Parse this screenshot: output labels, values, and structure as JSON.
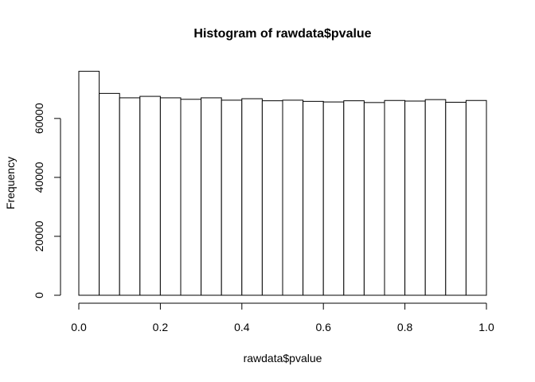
{
  "chart_data": {
    "type": "bar",
    "title": "Histogram of rawdata$pvalue",
    "xlabel": "rawdata$pvalue",
    "ylabel": "Frequency",
    "bin_edges": [
      0.0,
      0.05,
      0.1,
      0.15,
      0.2,
      0.25,
      0.3,
      0.35,
      0.4,
      0.45,
      0.5,
      0.55,
      0.6,
      0.65,
      0.7,
      0.75,
      0.8,
      0.85,
      0.9,
      0.95,
      1.0
    ],
    "values": [
      76000,
      68500,
      67000,
      67500,
      67000,
      66500,
      67000,
      66200,
      66700,
      66000,
      66200,
      65800,
      65600,
      66000,
      65400,
      66100,
      65900,
      66400,
      65500,
      66100
    ],
    "xlim": [
      0.0,
      1.0
    ],
    "ylim": [
      0,
      76000
    ],
    "x_ticks": [
      0.0,
      0.2,
      0.4,
      0.6,
      0.8,
      1.0
    ],
    "x_tick_labels": [
      "0.0",
      "0.2",
      "0.4",
      "0.6",
      "0.8",
      "1.0"
    ],
    "y_ticks": [
      0,
      20000,
      40000,
      60000
    ],
    "y_tick_labels": [
      "0",
      "20000",
      "40000",
      "60000"
    ],
    "grid": false,
    "legend": "none",
    "bar_fill": "#ffffff",
    "bar_stroke": "#000000"
  }
}
